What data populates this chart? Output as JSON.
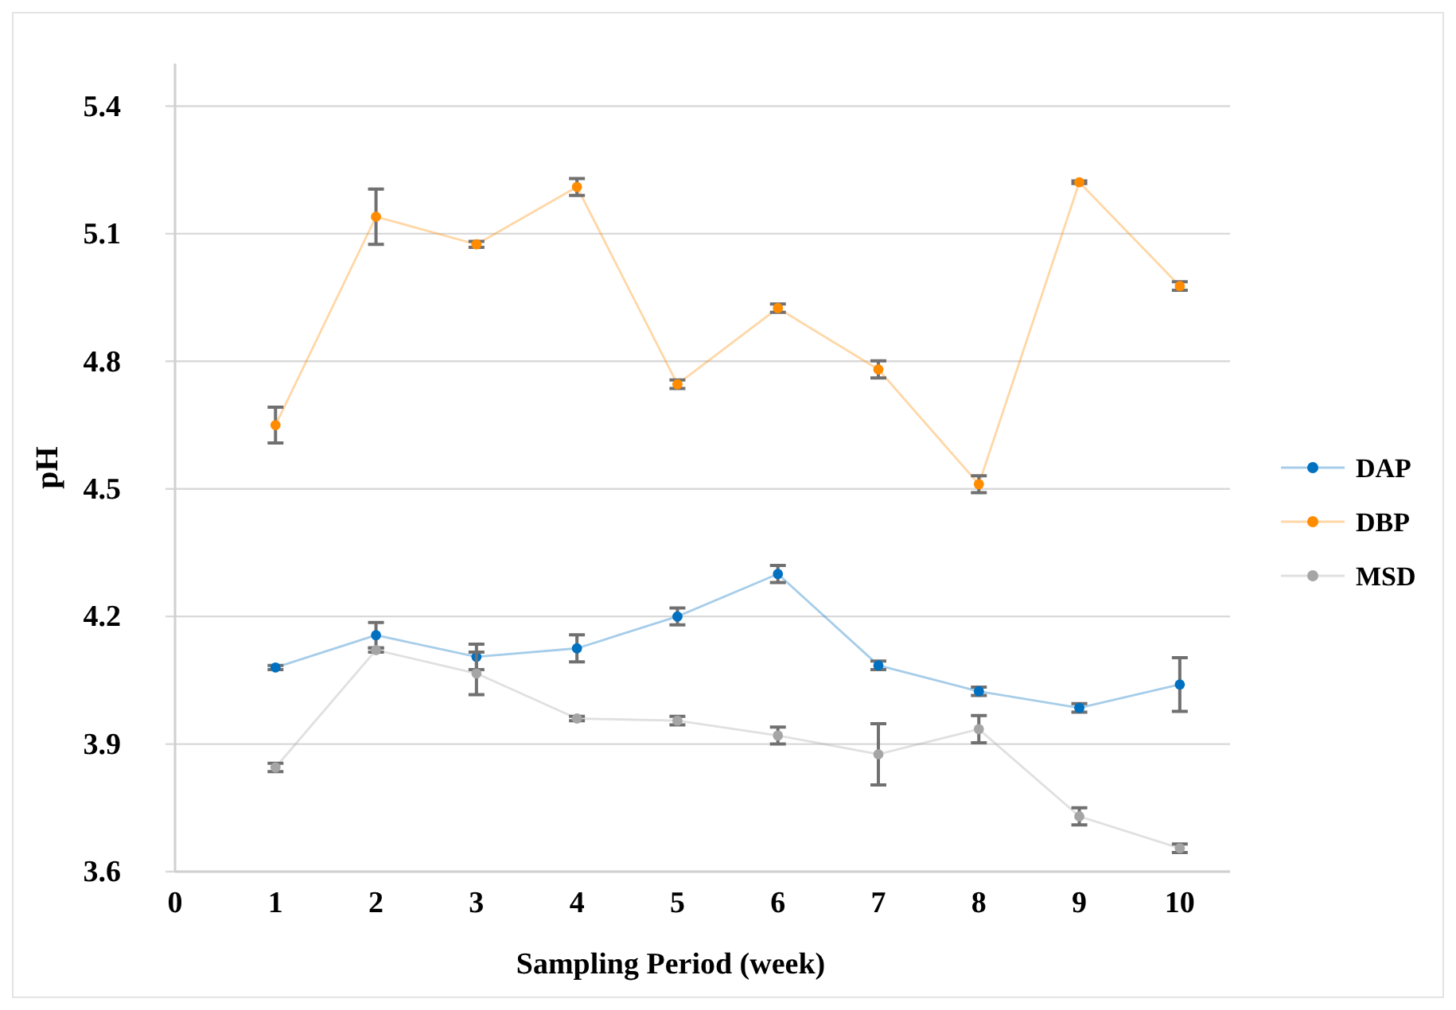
{
  "chart_data": {
    "type": "line",
    "xlabel": "Sampling Period (week)",
    "ylabel": "pH",
    "x": [
      1,
      2,
      3,
      4,
      5,
      6,
      7,
      8,
      9,
      10
    ],
    "xlim": [
      0,
      10.5
    ],
    "xticks": [
      0,
      1,
      2,
      3,
      4,
      5,
      6,
      7,
      8,
      9,
      10
    ],
    "ylim": [
      3.6,
      5.5
    ],
    "yticks": [
      {
        "value": 3.6,
        "label": "3.6"
      },
      {
        "value": 3.9,
        "label": "3.9"
      },
      {
        "value": 4.2,
        "label": "4.2"
      },
      {
        "value": 4.5,
        "label": "4.5"
      },
      {
        "value": 4.8,
        "label": "4.8"
      },
      {
        "value": 5.1,
        "label": "5.1"
      },
      {
        "value": 5.4,
        "label": "5.4"
      }
    ],
    "grid": "y",
    "legend": "right",
    "marker": "circle",
    "line_style": "solid",
    "series": [
      {
        "name": "DAP",
        "color": "#0070c0",
        "values": [
          4.08,
          4.156,
          4.105,
          4.125,
          4.2,
          4.3,
          4.085,
          4.024,
          3.985,
          4.04
        ],
        "errors": [
          0.005,
          0.03,
          0.03,
          0.032,
          0.02,
          0.02,
          0.01,
          0.01,
          0.01,
          0.063
        ]
      },
      {
        "name": "DBP",
        "color": "#ff8c00",
        "values": [
          4.65,
          5.14,
          5.075,
          5.21,
          4.746,
          4.925,
          4.781,
          4.511,
          5.221,
          4.977
        ],
        "errors": [
          0.042,
          0.065,
          0.007,
          0.02,
          0.01,
          0.01,
          0.02,
          0.02,
          0.003,
          0.01
        ]
      },
      {
        "name": "MSD",
        "color": "#a5a5a5",
        "values": [
          3.845,
          4.121,
          4.066,
          3.96,
          3.955,
          3.92,
          3.876,
          3.935,
          3.73,
          3.655
        ],
        "errors": [
          0.01,
          0.005,
          0.05,
          0.005,
          0.01,
          0.02,
          0.072,
          0.032,
          0.02,
          0.01
        ]
      }
    ]
  }
}
